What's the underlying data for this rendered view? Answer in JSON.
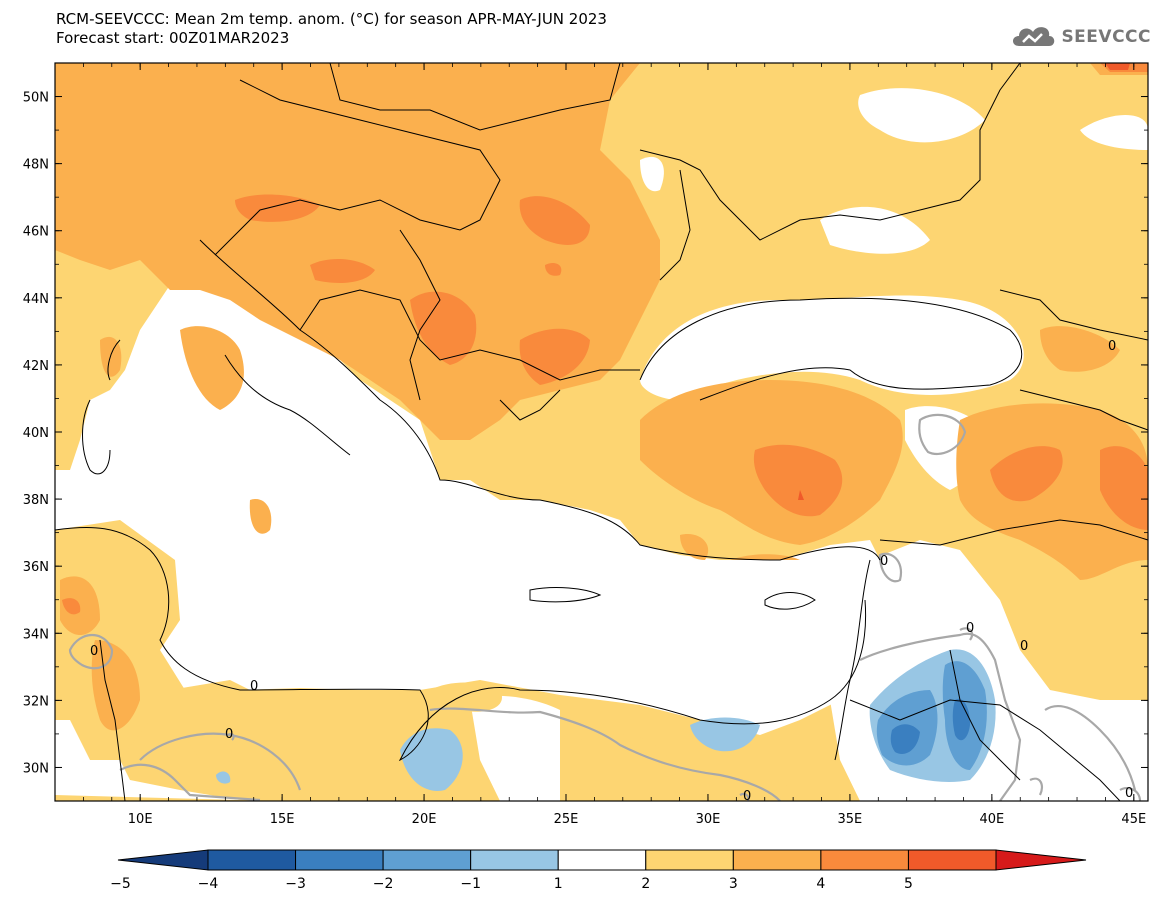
{
  "header": {
    "title_line1": "RCM-SEEVCCC: Mean 2m temp. anom. (°C) for season APR-MAY-JUN 2023",
    "title_line2": "Forecast start: 00Z01MAR2023",
    "logo_text": "SEEVCCC"
  },
  "map": {
    "lon_range": [
      7,
      45.5
    ],
    "lat_range": [
      29,
      51
    ],
    "lat_ticks": [
      "50N",
      "48N",
      "46N",
      "44N",
      "42N",
      "40N",
      "38N",
      "36N",
      "34N",
      "32N",
      "30N"
    ],
    "lon_ticks": [
      "10E",
      "15E",
      "20E",
      "25E",
      "30E",
      "35E",
      "40E",
      "45E"
    ],
    "contour_labels": [
      "0",
      "0",
      "0",
      "0",
      "0",
      "0",
      "0",
      "0",
      "0"
    ]
  },
  "colorbar": {
    "ticks": [
      "-5",
      "-4",
      "-3",
      "-2",
      "-1",
      "1",
      "2",
      "3",
      "4",
      "5"
    ],
    "colors": [
      "#1f5aa0",
      "#3a7fc0",
      "#5f9fd2",
      "#98c6e4",
      "#ffffff",
      "#fdd572",
      "#fbb04e",
      "#f98a3c",
      "#f05a2a"
    ],
    "end_low": "#153b7a",
    "end_high": "#d61a1a"
  },
  "legend_colors": {
    "anom_1_2": "#fdd572",
    "anom_2_3": "#fbb04e",
    "anom_3_4": "#f98a3c",
    "anom_4_5": "#f05a2a",
    "anom_m1_m2": "#98c6e4",
    "anom_m2_m3": "#5f9fd2",
    "anom_m3_m4": "#3a7fc0",
    "zero_contour": "#a8a8a8"
  }
}
